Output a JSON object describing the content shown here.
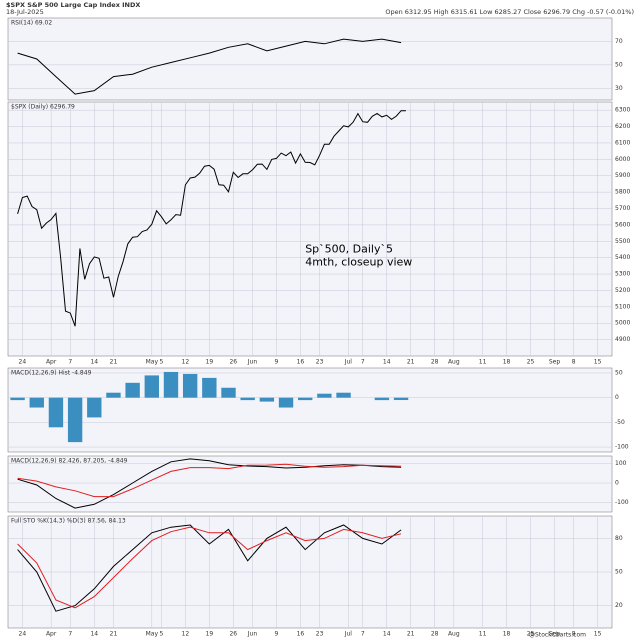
{
  "header": {
    "symbol": "$SPX S&P 500 Large Cap Index INDX",
    "date": "18-Jul-2025",
    "quote": "Open 6312.95  High 6315.61  Low 6285.27  Close 6296.79  Chg -0.57 (-0.01%)",
    "credit": "@StockCharts.com"
  },
  "chart_data": [
    {
      "type": "line",
      "label": "RSI(14) 69.02",
      "xlim": [
        -2,
        124
      ],
      "ylim": [
        20,
        90
      ],
      "yticks": [
        30,
        50,
        70
      ],
      "grid": true,
      "x": [
        0,
        4,
        8,
        12,
        16,
        20,
        24,
        28,
        32,
        36,
        40,
        44,
        48,
        52,
        56,
        60,
        64,
        68,
        72,
        76,
        80
      ],
      "series": [
        {
          "color": "#000000",
          "values": [
            60,
            55,
            40,
            25,
            28,
            40,
            42,
            48,
            52,
            56,
            60,
            65,
            68,
            62,
            66,
            70,
            68,
            72,
            70,
            72,
            69
          ]
        }
      ]
    },
    {
      "type": "line",
      "label": "$SPX (Daily) 6296.79",
      "annotation": "Sp`500, Daily`5\n4mth, closeup view",
      "xlim": [
        -2,
        124
      ],
      "ylim": [
        4800,
        6350
      ],
      "yticks": [
        4900,
        5000,
        5100,
        5200,
        5300,
        5400,
        5500,
        5600,
        5700,
        5800,
        5900,
        6000,
        6100,
        6200,
        6300
      ],
      "grid": true,
      "xticks": [
        {
          "value": 1,
          "label": "24"
        },
        {
          "value": 7,
          "label": "Apr"
        },
        {
          "value": 11,
          "label": "7"
        },
        {
          "value": 16,
          "label": "14"
        },
        {
          "value": 20,
          "label": "21"
        },
        {
          "value": 28,
          "label": "May"
        },
        {
          "value": 30,
          "label": "5"
        },
        {
          "value": 35,
          "label": "12"
        },
        {
          "value": 40,
          "label": "19"
        },
        {
          "value": 45,
          "label": "26"
        },
        {
          "value": 49,
          "label": "Jun"
        },
        {
          "value": 54,
          "label": "9"
        },
        {
          "value": 59,
          "label": "16"
        },
        {
          "value": 63,
          "label": "23"
        },
        {
          "value": 69,
          "label": "Jul"
        },
        {
          "value": 72,
          "label": "7"
        },
        {
          "value": 77,
          "label": "14"
        },
        {
          "value": 82,
          "label": "21"
        },
        {
          "value": 87,
          "label": "28"
        },
        {
          "value": 91,
          "label": "Aug"
        },
        {
          "value": 97,
          "label": "11"
        },
        {
          "value": 102,
          "label": "18"
        },
        {
          "value": 107,
          "label": "25"
        },
        {
          "value": 112,
          "label": "Sep"
        },
        {
          "value": 116,
          "label": "8"
        },
        {
          "value": 121,
          "label": "15"
        }
      ],
      "x": [
        0,
        1,
        2,
        3,
        4,
        5,
        6,
        7,
        8,
        9,
        10,
        11,
        12,
        13,
        14,
        15,
        16,
        17,
        18,
        19,
        20,
        21,
        22,
        23,
        24,
        25,
        26,
        27,
        28,
        29,
        30,
        31,
        32,
        33,
        34,
        35,
        36,
        37,
        38,
        39,
        40,
        41,
        42,
        43,
        44,
        45,
        46,
        47,
        48,
        49,
        50,
        51,
        52,
        53,
        54,
        55,
        56,
        57,
        58,
        59,
        60,
        61,
        62,
        63,
        64,
        65,
        66,
        67,
        68,
        69,
        70,
        71,
        72,
        73,
        74,
        75,
        76,
        77,
        78,
        79,
        80,
        81
      ],
      "series": [
        {
          "color": "#000000",
          "values": [
            5667,
            5767,
            5776,
            5712,
            5693,
            5580,
            5611,
            5633,
            5670,
            5396,
            5074,
            5062,
            4982,
            5456,
            5268,
            5363,
            5405,
            5396,
            5275,
            5282,
            5158,
            5287,
            5375,
            5484,
            5525,
            5528,
            5560,
            5569,
            5604,
            5686,
            5650,
            5606,
            5631,
            5663,
            5659,
            5844,
            5886,
            5892,
            5916,
            5958,
            5963,
            5940,
            5845,
            5842,
            5802,
            5921,
            5889,
            5912,
            5912,
            5936,
            5970,
            5971,
            5939,
            6000,
            6006,
            6038,
            6022,
            6045,
            5977,
            6033,
            5982,
            5981,
            5967,
            6025,
            6092,
            6092,
            6141,
            6173,
            6205,
            6198,
            6227,
            6279,
            6230,
            6226,
            6263,
            6280,
            6259,
            6269,
            6244,
            6264,
            6297,
            6297
          ]
        }
      ]
    },
    {
      "type": "bar",
      "label": "MACD(12,26,9) Hist -4.849",
      "xlim": [
        -2,
        124
      ],
      "ylim": [
        -110,
        60
      ],
      "yticks": [
        -100,
        -50,
        0,
        50
      ],
      "grid": true,
      "x": [
        0,
        4,
        8,
        12,
        16,
        20,
        24,
        28,
        32,
        36,
        40,
        44,
        48,
        52,
        56,
        60,
        64,
        68,
        72,
        76,
        80
      ],
      "series": [
        {
          "color": "#3a8fc0",
          "values": [
            -5,
            -20,
            -60,
            -90,
            -40,
            10,
            30,
            45,
            52,
            48,
            40,
            20,
            -5,
            -8,
            -20,
            -5,
            8,
            10,
            0,
            -5,
            -4.8
          ]
        }
      ]
    },
    {
      "type": "line",
      "label": "MACD(12,26,9) 82.426, 87.205, -4.849",
      "xlim": [
        -2,
        124
      ],
      "ylim": [
        -150,
        140
      ],
      "yticks": [
        -100,
        0,
        100
      ],
      "grid": true,
      "x": [
        0,
        4,
        8,
        12,
        16,
        20,
        24,
        28,
        32,
        36,
        40,
        44,
        48,
        52,
        56,
        60,
        64,
        68,
        72,
        76,
        80
      ],
      "series": [
        {
          "color": "#000000",
          "values": [
            20,
            -10,
            -80,
            -130,
            -110,
            -60,
            0,
            60,
            110,
            125,
            115,
            95,
            88,
            85,
            78,
            82,
            90,
            95,
            92,
            85,
            82
          ]
        },
        {
          "color": "#e02020",
          "values": [
            25,
            10,
            -20,
            -40,
            -70,
            -70,
            -30,
            15,
            60,
            80,
            80,
            75,
            92,
            93,
            97,
            87,
            82,
            85,
            92,
            90,
            87
          ]
        }
      ]
    },
    {
      "type": "line",
      "label": "Full STO %K(14,3) %D(3) 87.56, 84.13",
      "xlim": [
        -2,
        124
      ],
      "ylim": [
        0,
        100
      ],
      "yticks": [
        20,
        50,
        80
      ],
      "grid": true,
      "xticks": [
        {
          "value": 1,
          "label": "24"
        },
        {
          "value": 7,
          "label": "Apr"
        },
        {
          "value": 11,
          "label": "7"
        },
        {
          "value": 16,
          "label": "14"
        },
        {
          "value": 20,
          "label": "21"
        },
        {
          "value": 28,
          "label": "May"
        },
        {
          "value": 30,
          "label": "5"
        },
        {
          "value": 35,
          "label": "12"
        },
        {
          "value": 40,
          "label": "19"
        },
        {
          "value": 45,
          "label": "26"
        },
        {
          "value": 49,
          "label": "Jun"
        },
        {
          "value": 54,
          "label": "9"
        },
        {
          "value": 59,
          "label": "16"
        },
        {
          "value": 63,
          "label": "23"
        },
        {
          "value": 69,
          "label": "Jul"
        },
        {
          "value": 72,
          "label": "7"
        },
        {
          "value": 77,
          "label": "14"
        },
        {
          "value": 82,
          "label": "21"
        },
        {
          "value": 87,
          "label": "28"
        },
        {
          "value": 91,
          "label": "Aug"
        },
        {
          "value": 97,
          "label": "11"
        },
        {
          "value": 102,
          "label": "18"
        },
        {
          "value": 107,
          "label": "25"
        },
        {
          "value": 112,
          "label": "Sep"
        },
        {
          "value": 116,
          "label": "8"
        },
        {
          "value": 121,
          "label": "15"
        }
      ],
      "x": [
        0,
        4,
        8,
        12,
        16,
        20,
        24,
        28,
        32,
        36,
        40,
        44,
        48,
        52,
        56,
        60,
        64,
        68,
        72,
        76,
        80
      ],
      "series": [
        {
          "color": "#000000",
          "values": [
            70,
            50,
            15,
            20,
            35,
            55,
            70,
            85,
            90,
            92,
            75,
            88,
            60,
            80,
            90,
            70,
            85,
            92,
            80,
            75,
            87.56
          ]
        },
        {
          "color": "#e02020",
          "values": [
            75,
            58,
            25,
            18,
            28,
            45,
            62,
            78,
            86,
            90,
            85,
            85,
            70,
            78,
            85,
            78,
            80,
            88,
            85,
            80,
            84.13
          ]
        }
      ]
    }
  ]
}
